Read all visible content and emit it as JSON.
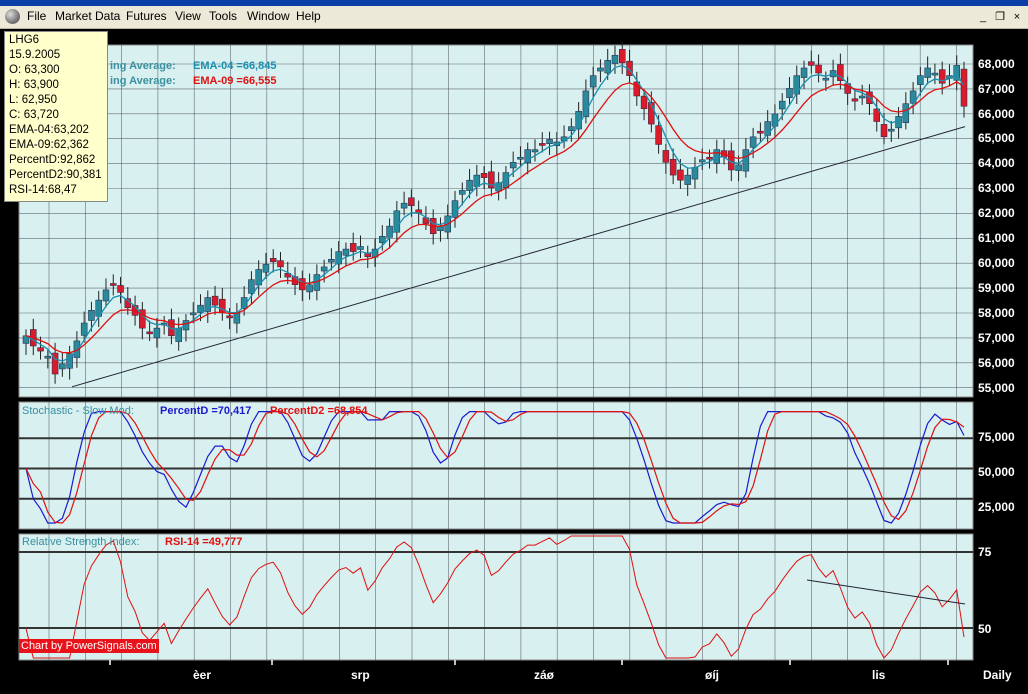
{
  "menu": {
    "items": [
      "File",
      "Market Data",
      "Futures",
      "View",
      "Tools",
      "Window",
      "Help"
    ],
    "window_buttons": [
      "_",
      "❐",
      "×"
    ]
  },
  "info_box": {
    "lines": [
      "LHG6",
      "15.9.2005",
      "O: 63,300",
      "H: 63,900",
      "L: 62,950",
      "C: 63,720",
      "EMA-04:63,202",
      "EMA-09:62,362",
      "PercentD:92,862",
      "PercentD2:90,381",
      "RSI-14:68,47"
    ]
  },
  "price_panel": {
    "legend": [
      {
        "label": "ing Average:",
        "value": "EMA-04 =66,845",
        "color": "#1a8fb0"
      },
      {
        "label": "ing Average:",
        "value": "EMA-09 =66,555",
        "color": "#e01010"
      }
    ],
    "y_ticks": [
      "68,000",
      "67,000",
      "66,000",
      "65,000",
      "64,000",
      "63,000",
      "62,000",
      "61,000",
      "60,000",
      "59,000",
      "58,000",
      "57,000",
      "56,000",
      "55,000"
    ]
  },
  "stoch_panel": {
    "title": "Stochastic - Slow Mod:",
    "d_label": "PercentD =70,417",
    "d2_label": "PercentD2 =68,854",
    "y_ticks": [
      "75,000",
      "50,000",
      "25,000"
    ]
  },
  "rsi_panel": {
    "title": "Relative Strength Index:",
    "rsi_label": "RSI-14 =49,777",
    "y_ticks": [
      "75",
      "50"
    ]
  },
  "x_ticks": [
    "èer",
    "srp",
    "záø",
    "øíj",
    "lis"
  ],
  "period": "Daily",
  "credit": "Chart by PowerSignals.com",
  "colors": {
    "panel_bg": "#d8f0ef",
    "up": "#2a8a9c",
    "down": "#d81c2c",
    "ema4": "#1a8fb0",
    "ema9": "#e01010",
    "pd": "#1a1ad0",
    "pd2": "#e01010",
    "rsi": "#e01010"
  },
  "chart_data": {
    "type": "candlestick",
    "closes": [
      57.0,
      56.6,
      56.4,
      56.2,
      55.5,
      55.9,
      56.3,
      56.8,
      57.5,
      58.0,
      58.4,
      58.8,
      59.0,
      58.7,
      58.1,
      57.8,
      57.3,
      57.1,
      57.3,
      57.5,
      57.0,
      57.3,
      57.6,
      57.9,
      58.2,
      58.5,
      58.2,
      57.9,
      57.7,
      57.9,
      58.5,
      59.2,
      59.6,
      59.8,
      59.9,
      59.7,
      59.3,
      59.0,
      58.8,
      59.0,
      59.4,
      59.7,
      60.0,
      60.3,
      60.4,
      60.3,
      60.5,
      60.1,
      60.4,
      60.9,
      61.3,
      61.9,
      62.2,
      62.1,
      61.8,
      61.4,
      61.0,
      61.3,
      61.7,
      62.3,
      62.7,
      63.1,
      63.3,
      63.2,
      62.8,
      63.0,
      63.4,
      63.8,
      64.0,
      64.3,
      64.3,
      64.5,
      64.7,
      64.6,
      64.8,
      65.2,
      65.8,
      66.6,
      67.2,
      67.5,
      67.8,
      68.0,
      67.7,
      67.2,
      66.4,
      65.9,
      65.3,
      64.5,
      63.8,
      63.3,
      63.1,
      63.3,
      63.6,
      63.9,
      64.0,
      64.3,
      64.0,
      63.5,
      63.7,
      64.3,
      64.8,
      65.0,
      65.4,
      65.7,
      66.2,
      66.7,
      67.2,
      67.5,
      67.6,
      67.3,
      67.1,
      67.4,
      67.0,
      66.5,
      66.2,
      66.4,
      66.1,
      65.4,
      64.8,
      65.1,
      65.6,
      66.1,
      66.6,
      67.2,
      67.5,
      67.3,
      66.9,
      67.2,
      67.6,
      66.0
    ],
    "ema4_last": 66.845,
    "ema9_last": 66.555,
    "percentD_last": 70.417,
    "percentD2_last": 68.854,
    "rsi14_last": 49.777,
    "price_range": [
      54.6,
      68.4
    ],
    "stoch_levels": [
      75,
      50,
      25
    ],
    "rsi_levels": [
      75,
      50
    ],
    "x_labels": [
      "èer",
      "srp",
      "záø",
      "øíj",
      "lis"
    ]
  }
}
